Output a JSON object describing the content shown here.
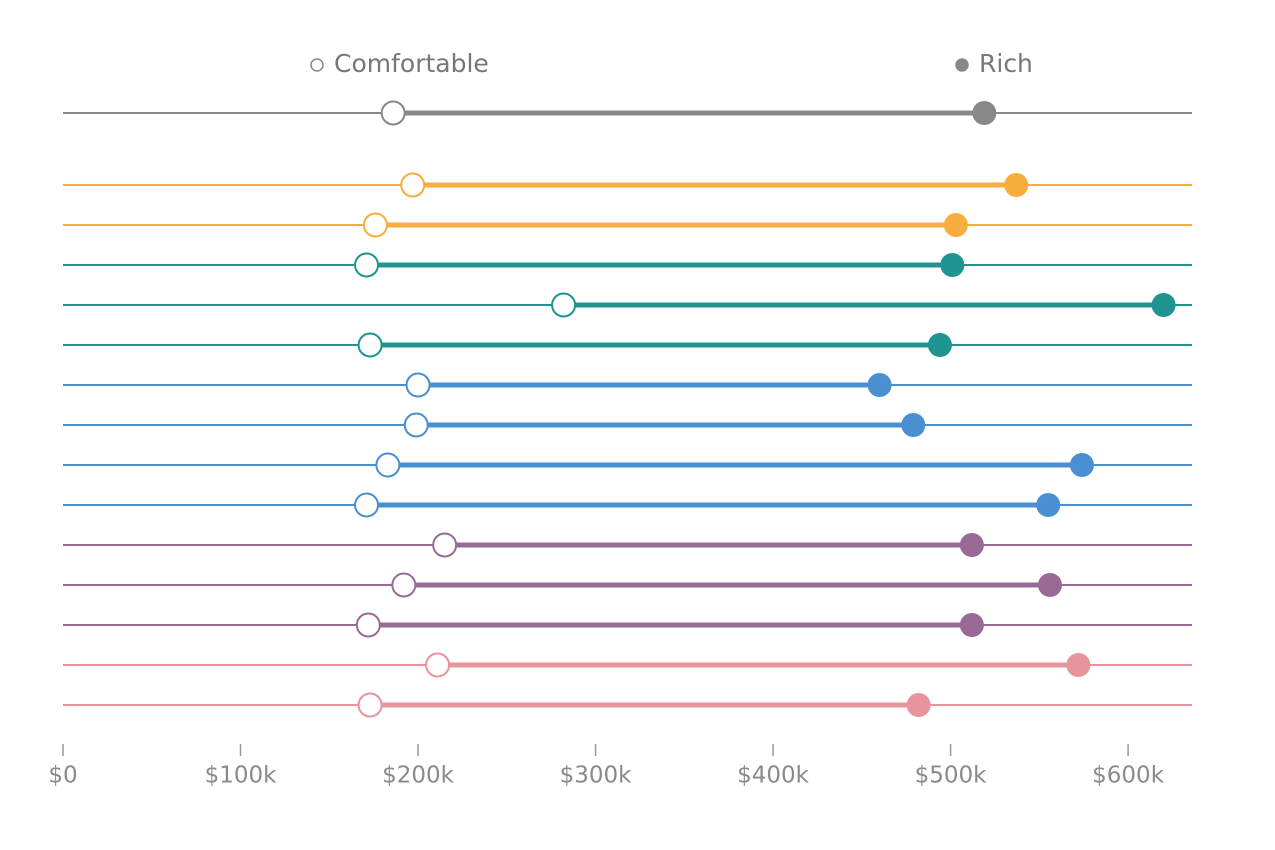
{
  "chart_data": {
    "type": "dumbbell",
    "categories": [
      null,
      null,
      null,
      null,
      null,
      null,
      null,
      null,
      null,
      null,
      null,
      null,
      null,
      null,
      null
    ],
    "colors": [
      "#888888",
      "#f8ae3c",
      "#f8ae3c",
      "#1f9490",
      "#1f9490",
      "#1f9490",
      "#4a8fd2",
      "#4a8fd2",
      "#4a8fd2",
      "#4a8fd2",
      "#9a6a97",
      "#9a6a97",
      "#9a6a97",
      "#e8949d",
      "#e8949d"
    ],
    "series": [
      {
        "name": "Comfortable",
        "color": "#888888",
        "values": [
          186000,
          197000,
          176000,
          171000,
          282000,
          173000,
          200000,
          199000,
          183000,
          171000,
          215000,
          192000,
          172000,
          211000,
          173000
        ]
      },
      {
        "name": "Rich",
        "color": "#888888",
        "values": [
          519000,
          537000,
          503000,
          501000,
          620000,
          494000,
          460000,
          479000,
          574000,
          555000,
          512000,
          556000,
          512000,
          572000,
          482000
        ]
      }
    ],
    "xlim": [
      0,
      636000
    ],
    "xticks": [
      {
        "value": 0,
        "label": "$0"
      },
      {
        "value": 100000,
        "label": "$100k"
      },
      {
        "value": 200000,
        "label": "$200k"
      },
      {
        "value": 300000,
        "label": "$300k"
      },
      {
        "value": 400000,
        "label": "$400k"
      },
      {
        "value": 500000,
        "label": "$500k"
      },
      {
        "value": 600000,
        "label": "$600k"
      }
    ]
  }
}
